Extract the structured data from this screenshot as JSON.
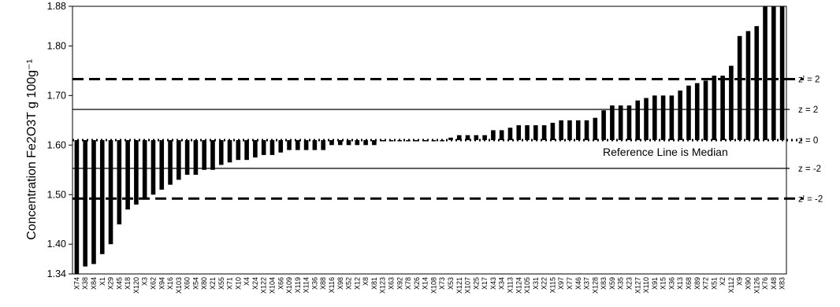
{
  "chart_data": {
    "type": "bar",
    "ylabel": "Concentration Fe2O3T g 100g⁻¹",
    "ylim": [
      1.34,
      1.88
    ],
    "yticks": [
      "1.34",
      "1.40",
      "1.50",
      "1.60",
      "1.70",
      "1.80",
      "1.88"
    ],
    "grid": false,
    "baseline": 1.61,
    "categories": [
      "X74",
      "X38",
      "X84",
      "X1",
      "X29",
      "X45",
      "X18",
      "X120",
      "X3",
      "X62",
      "X94",
      "X16",
      "X103",
      "X60",
      "X54",
      "X80",
      "X21",
      "X55",
      "X71",
      "X10",
      "X4",
      "X24",
      "X122",
      "X104",
      "X66",
      "X109",
      "X119",
      "X114",
      "X36",
      "X88",
      "X116",
      "X98",
      "X52",
      "X12",
      "X8",
      "X81",
      "X123",
      "X63",
      "X92",
      "X78",
      "X26",
      "X14",
      "X108",
      "X73",
      "X53",
      "X121",
      "X107",
      "X25",
      "X17",
      "X43",
      "X34",
      "X113",
      "X124",
      "X105",
      "X31",
      "X22",
      "X115",
      "X97",
      "X77",
      "X46",
      "X37",
      "X128",
      "X83",
      "X59",
      "X35",
      "X23",
      "X127",
      "X110",
      "X91",
      "X15",
      "X36",
      "X13",
      "X68",
      "X89",
      "X72",
      "X51",
      "X2",
      "X112",
      "X9",
      "X90",
      "X126",
      "X76",
      "X48",
      "X83"
    ],
    "values": [
      1.34,
      1.355,
      1.36,
      1.38,
      1.4,
      1.44,
      1.47,
      1.48,
      1.49,
      1.5,
      1.51,
      1.52,
      1.53,
      1.54,
      1.54,
      1.55,
      1.55,
      1.56,
      1.565,
      1.57,
      1.57,
      1.575,
      1.58,
      1.58,
      1.585,
      1.59,
      1.59,
      1.59,
      1.59,
      1.59,
      1.6,
      1.6,
      1.6,
      1.6,
      1.6,
      1.6,
      1.61,
      1.61,
      1.61,
      1.61,
      1.61,
      1.61,
      1.61,
      1.61,
      1.615,
      1.62,
      1.62,
      1.62,
      1.62,
      1.63,
      1.63,
      1.635,
      1.64,
      1.64,
      1.64,
      1.64,
      1.645,
      1.65,
      1.65,
      1.65,
      1.65,
      1.655,
      1.67,
      1.68,
      1.68,
      1.68,
      1.69,
      1.695,
      1.7,
      1.7,
      1.7,
      1.71,
      1.72,
      1.725,
      1.73,
      1.74,
      1.74,
      1.76,
      1.82,
      1.83,
      1.84,
      1.88,
      1.88,
      1.88
    ],
    "reference_lines": [
      {
        "value": 1.733,
        "label": "z' = 2",
        "style": "dashed"
      },
      {
        "value": 1.672,
        "label": "z = 2",
        "style": "solid"
      },
      {
        "value": 1.61,
        "label": "z = 0",
        "style": "dotted"
      },
      {
        "value": 1.553,
        "label": "z = -2",
        "style": "solid"
      },
      {
        "value": 1.492,
        "label": "z' = -2",
        "style": "dashed"
      }
    ],
    "annotation": "Reference Line is Median"
  }
}
